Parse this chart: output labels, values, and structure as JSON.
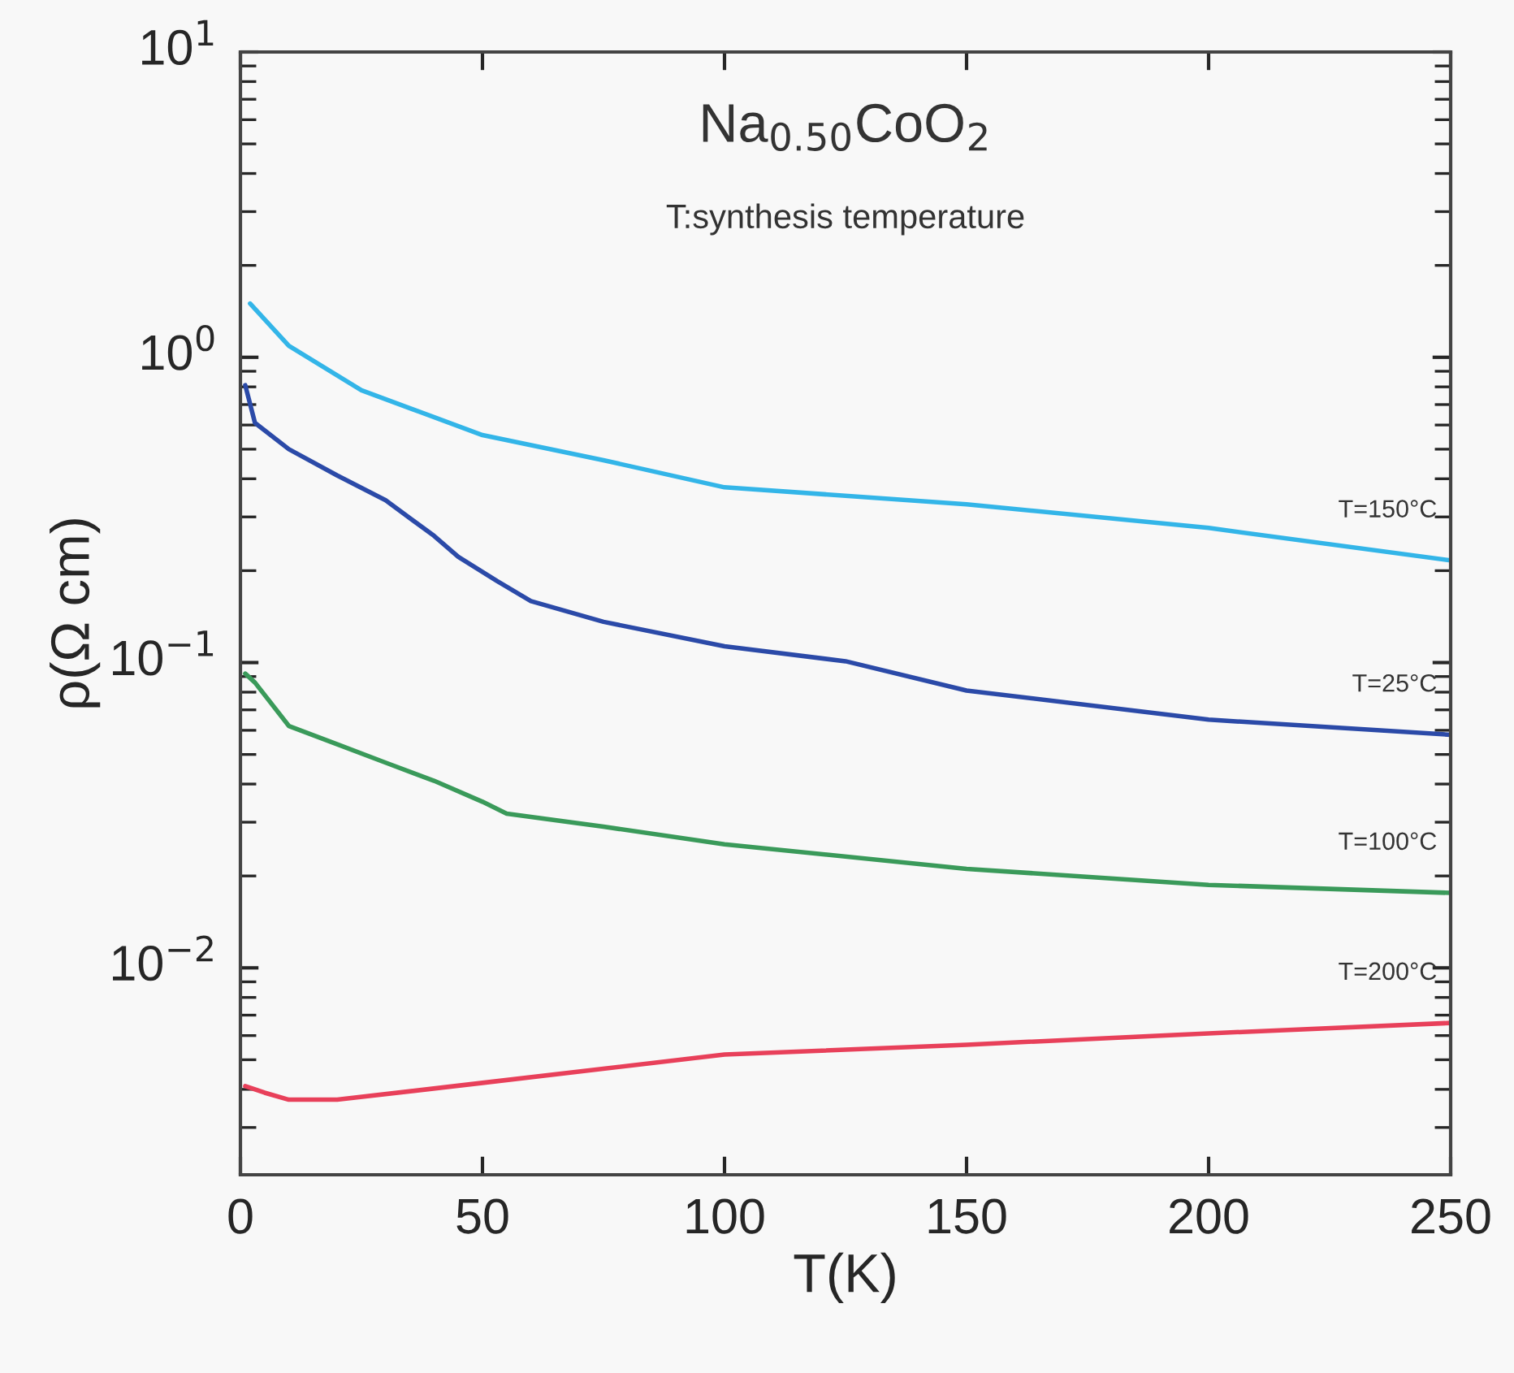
{
  "chart_data": {
    "type": "line",
    "title": "Na$_{0.50}$CoO$_{2}$",
    "subtitle": "T:synthesis temperature",
    "xlabel": "T(K)",
    "ylabel": "ρ(Ω cm)",
    "log": "y",
    "grid": false,
    "legend": false,
    "marker": "none",
    "line_style": "solid",
    "xlim": [
      0,
      250
    ],
    "xticks": [
      0,
      50,
      100,
      150,
      200,
      250
    ],
    "ylim": [
      0.0021,
      10
    ],
    "yticks": [
      {
        "value": 0.01,
        "label": "10$^{−2}$"
      },
      {
        "value": 0.1,
        "label": "10$^{−1}$"
      },
      {
        "value": 1,
        "label": "10$^{0}$"
      },
      {
        "value": 10,
        "label": "10$^{1}$"
      }
    ],
    "series": [
      {
        "name": "T=150°C",
        "color": "#33b5e8",
        "x": [
          2,
          10,
          25,
          50,
          75,
          100,
          150,
          200,
          250
        ],
        "values": [
          1.5,
          1.09,
          0.78,
          0.556,
          0.46,
          0.375,
          0.33,
          0.276,
          0.216
        ]
      },
      {
        "name": "T=25°C",
        "color": "#2b4aa8",
        "x": [
          1,
          3,
          10,
          20,
          30,
          40,
          45,
          53,
          60,
          75,
          100,
          125,
          150,
          200,
          250
        ],
        "values": [
          0.81,
          0.61,
          0.5,
          0.41,
          0.34,
          0.26,
          0.222,
          0.185,
          0.159,
          0.136,
          0.113,
          0.101,
          0.081,
          0.065,
          0.058
        ]
      },
      {
        "name": "T=100°C",
        "color": "#3a9a5a",
        "x": [
          1,
          3,
          10,
          20,
          30,
          40,
          50,
          55,
          75,
          100,
          150,
          200,
          250
        ],
        "values": [
          0.092,
          0.086,
          0.062,
          0.054,
          0.047,
          0.041,
          0.035,
          0.032,
          0.029,
          0.0254,
          0.0211,
          0.0187,
          0.0176
        ]
      },
      {
        "name": "T=200°C",
        "color": "#e8405a",
        "x": [
          1,
          5,
          10,
          20,
          50,
          100,
          150,
          200,
          250
        ],
        "values": [
          0.0041,
          0.0039,
          0.0037,
          0.0037,
          0.0042,
          0.0052,
          0.0056,
          0.0061,
          0.0066
        ]
      }
    ]
  }
}
